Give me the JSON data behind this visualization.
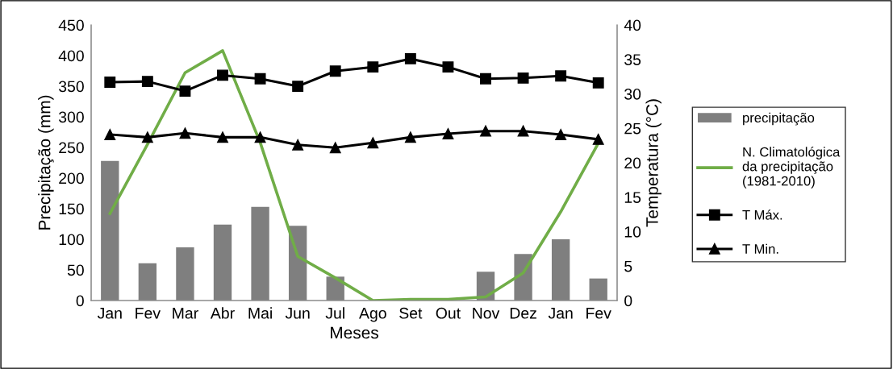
{
  "chart_data": {
    "type": "bar",
    "xlabel": "Meses",
    "ylabel": "Precipitação (mm)",
    "y2label": "Temperatura (°C)",
    "categories": [
      "Jan",
      "Fev",
      "Mar",
      "Abr",
      "Mai",
      "Jun",
      "Jul",
      "Ago",
      "Set",
      "Out",
      "Nov",
      "Dez",
      "Jan",
      "Fev"
    ],
    "series": [
      {
        "name": "precipitação",
        "color": "#7f7f7f",
        "values": [
          228,
          61,
          87,
          124,
          153,
          122,
          39,
          0,
          0,
          0,
          47,
          76,
          100,
          36
        ]
      },
      {
        "name": "N. Climatológica\nda precipitação\n(1981-2010)",
        "type": "line",
        "color": "#70ad47",
        "marker": "none",
        "values": [
          142,
          255,
          372,
          408,
          258,
          72,
          37,
          0,
          2,
          2,
          6,
          45,
          145,
          257
        ]
      },
      {
        "name": "T Máx.",
        "type": "line",
        "axis": "y2",
        "color": "#000000",
        "marker": "square",
        "values": [
          31.7,
          31.8,
          30.4,
          32.7,
          32.2,
          31.1,
          33.3,
          33.9,
          35.1,
          33.9,
          32.2,
          32.3,
          32.6,
          31.6
        ]
      },
      {
        "name": "T Min.",
        "type": "line",
        "axis": "y2",
        "color": "#000000",
        "marker": "triangle",
        "values": [
          24.1,
          23.7,
          24.3,
          23.7,
          23.7,
          22.6,
          22.2,
          22.9,
          23.7,
          24.2,
          24.6,
          24.6,
          24.1,
          23.4
        ]
      }
    ],
    "ylim": [
      0,
      450
    ],
    "yticks": [
      0,
      50,
      100,
      150,
      200,
      250,
      300,
      350,
      400,
      450
    ],
    "y2lim": [
      0,
      40
    ],
    "y2ticks": [
      0,
      5,
      10,
      15,
      20,
      25,
      30,
      35,
      40
    ],
    "grid": false,
    "legend": "right",
    "line_style": "solid"
  }
}
